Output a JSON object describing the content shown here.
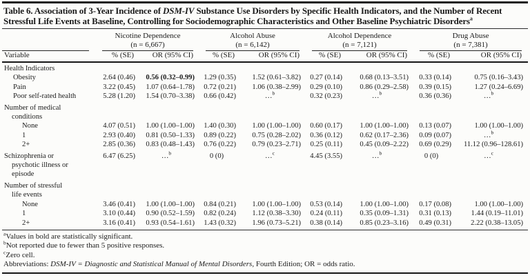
{
  "colors": {
    "background": "#fcfcfa",
    "text": "#1b1b1b",
    "rule": "#161616"
  },
  "title": {
    "part1": "Table 6. Association of 3-Year Incidence of ",
    "italic": "DSM-IV",
    "part2": " Substance Use Disorders by Specific Health Indicators, and the Number of Recent Stressful Life Events at Baseline, Controlling for Sociodemographic Characteristics and Other Baseline Psychiatric Disorders",
    "marker": "a"
  },
  "table": {
    "variable_label": "Variable",
    "se_label": "% (SE)",
    "or_label": "OR (95% CI)",
    "groups": [
      {
        "name": "Nicotine Dependence",
        "n": "(n = 6,667)"
      },
      {
        "name": "Alcohol Abuse",
        "n": "(n = 6,142)"
      },
      {
        "name": "Alcohol Dependence",
        "n": "(n = 7,121)"
      },
      {
        "name": "Drug Abuse",
        "n": "(n = 7,381)"
      }
    ],
    "rows": [
      {
        "label": "Health Indicators",
        "indent": 0
      },
      {
        "label": "Obesity",
        "indent": 1,
        "cells": [
          "2.64 (0.46)",
          {
            "t": "0.56 (0.32–0.99)",
            "b": true
          },
          "1.29 (0.35)",
          "1.52 (0.61–3.82)",
          "0.27 (0.14)",
          "0.68 (0.13–3.51)",
          "0.33 (0.14)",
          "0.75 (0.16–3.43)"
        ]
      },
      {
        "label": "Pain",
        "indent": 1,
        "cells": [
          "3.22 (0.45)",
          "1.07 (0.64–1.78)",
          "0.72 (0.21)",
          "1.06 (0.38–2.99)",
          "0.29 (0.10)",
          "0.86 (0.29–2.58)",
          "0.39 (0.15)",
          "1.27 (0.24–6.69)"
        ]
      },
      {
        "label": "Poor self-rated health",
        "indent": 1,
        "cells": [
          "5.28 (1.20)",
          "1.54 (0.70–3.38)",
          "0.66 (0.42)",
          {
            "t": "…",
            "sup": "b",
            "c": true
          },
          "0.32 (0.23)",
          {
            "t": "…",
            "sup": "b",
            "c": true
          },
          "0.36 (0.36)",
          {
            "t": "…",
            "sup": "b",
            "c": true
          }
        ]
      },
      {
        "label": [
          "Number of medical",
          "conditions"
        ],
        "indent": 0,
        "section": true
      },
      {
        "label": "None",
        "indent": 2,
        "cells": [
          "4.07 (0.51)",
          "1.00 (1.00–1.00)",
          "1.40 (0.30)",
          "1.00 (1.00–1.00)",
          "0.60 (0.17)",
          "1.00 (1.00–1.00)",
          "0.13 (0.07)",
          "1.00 (1.00–1.00)"
        ]
      },
      {
        "label": "1",
        "indent": 2,
        "cells": [
          "2.93 (0.40)",
          "0.81 (0.50–1.33)",
          "0.89 (0.22)",
          "0.75 (0.28–2.02)",
          "0.36 (0.12)",
          "0.62 (0.17–2.36)",
          "0.09 (0.07)",
          {
            "t": "…",
            "sup": "b",
            "c": true
          }
        ]
      },
      {
        "label": "2+",
        "indent": 2,
        "cells": [
          "2.85 (0.36)",
          "0.83 (0.48–1.43)",
          "0.76 (0.22)",
          "0.79 (0.23–2.71)",
          "0.25 (0.11)",
          "0.45 (0.09–2.22)",
          "0.69 (0.29)",
          "11.12 (0.96–128.61)"
        ]
      },
      {
        "label": [
          "Schizophrenia or",
          "psychotic illness or",
          "episode"
        ],
        "indent": 0,
        "section": true,
        "cells": [
          "6.47 (6.25)",
          {
            "t": "…",
            "sup": "b",
            "c": true
          },
          {
            "t": "0 (0)",
            "c": true
          },
          {
            "t": "…",
            "sup": "c",
            "c": true
          },
          "4.45 (3.55)",
          {
            "t": "…",
            "sup": "b",
            "c": true
          },
          {
            "t": "0 (0)",
            "c": true
          },
          {
            "t": "…",
            "sup": "c",
            "c": true
          }
        ]
      },
      {
        "label": [
          "Number of stressful",
          "life events"
        ],
        "indent": 0,
        "section": true
      },
      {
        "label": "None",
        "indent": 2,
        "cells": [
          "3.46 (0.41)",
          "1.00 (1.00–1.00)",
          "0.84 (0.21)",
          "1.00 (1.00–1.00)",
          "0.53 (0.14)",
          "1.00 (1.00–1.00)",
          "0.17 (0.08)",
          "1.00 (1.00–1.00)"
        ]
      },
      {
        "label": "1",
        "indent": 2,
        "cells": [
          "3.10 (0.44)",
          "0.90 (0.52–1.59)",
          "0.82 (0.24)",
          "1.12 (0.38–3.30)",
          "0.24 (0.11)",
          "0.35 (0.09–1.31)",
          "0.31 (0.13)",
          "1.44 (0.19–11.01)"
        ]
      },
      {
        "label": "2+",
        "indent": 2,
        "cells": [
          "3.16 (0.41)",
          "0.93 (0.54–1.61)",
          "1.43 (0.32)",
          "1.96 (0.73–5.21)",
          "0.38 (0.14)",
          "0.85 (0.23–3.16)",
          "0.49 (0.31)",
          "2.22 (0.38–13.05)"
        ]
      }
    ]
  },
  "footnotes": [
    {
      "marker": "a",
      "text": "Values in bold are statistically significant."
    },
    {
      "marker": "b",
      "text": "Not reported due to fewer than 5 positive responses."
    },
    {
      "marker": "c",
      "text": "Zero cell."
    }
  ],
  "abbreviations": {
    "prefix": "Abbreviations: ",
    "italic": "DSM-IV = Diagnostic and Statistical Manual of Mental Disorders",
    "suffix": ", Fourth Edition; OR = odds ratio."
  }
}
